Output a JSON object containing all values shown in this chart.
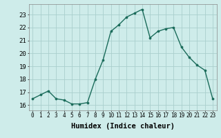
{
  "x": [
    0,
    1,
    2,
    3,
    4,
    5,
    6,
    7,
    8,
    9,
    10,
    11,
    12,
    13,
    14,
    15,
    16,
    17,
    18,
    19,
    20,
    21,
    22,
    23
  ],
  "y": [
    16.5,
    16.8,
    17.1,
    16.5,
    16.4,
    16.1,
    16.1,
    16.2,
    18.0,
    19.5,
    21.7,
    22.2,
    22.8,
    23.1,
    23.4,
    21.2,
    21.7,
    21.9,
    22.0,
    20.5,
    19.7,
    19.1,
    18.7,
    16.5
  ],
  "line_color": "#1a6b5a",
  "marker": "o",
  "markersize": 2.2,
  "linewidth": 1.0,
  "bg_color": "#ceecea",
  "grid_color": "#aacfcd",
  "ylabel_values": [
    16,
    17,
    18,
    19,
    20,
    21,
    22,
    23
  ],
  "ylim": [
    15.6,
    23.8
  ],
  "xlim": [
    -0.5,
    23.5
  ],
  "xlabel": "Humidex (Indice chaleur)",
  "xlabel_fontsize": 7.5,
  "tick_fontsize": 6.5,
  "xtick_fontsize": 5.5,
  "title": ""
}
